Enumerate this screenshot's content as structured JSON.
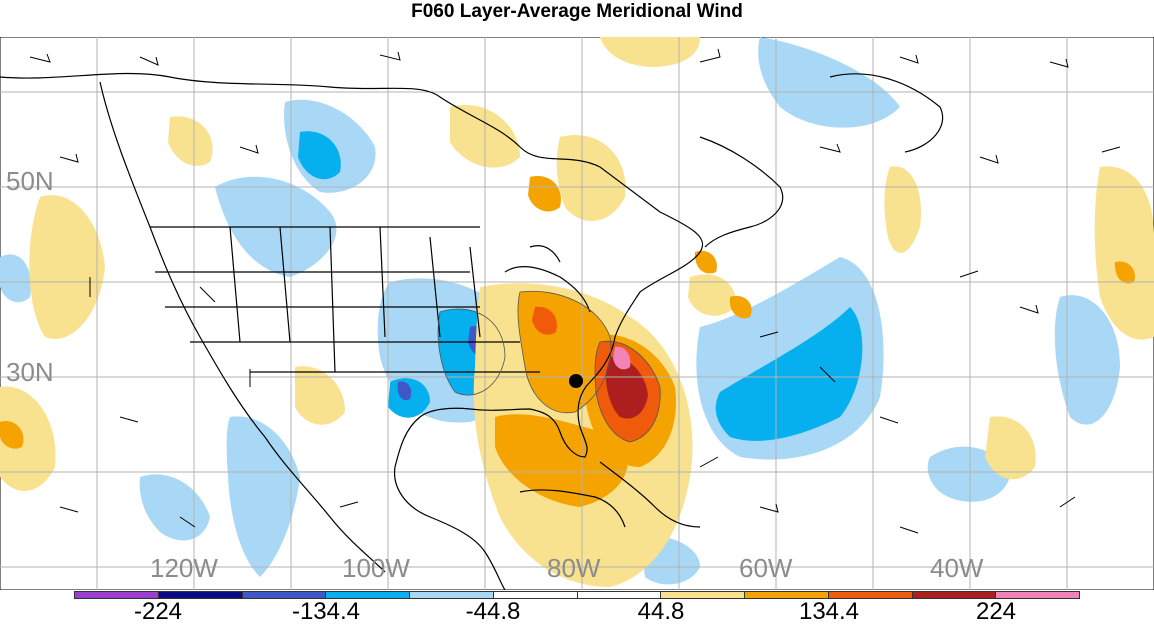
{
  "title": "F060 Layer-Average Meridional Wind",
  "lat_labels": [
    "50N",
    "30N"
  ],
  "lon_labels": [
    "120W",
    "100W",
    "80W",
    "60W",
    "40W"
  ],
  "colorbar": {
    "colors": [
      "#9a3fd0",
      "#0a0a86",
      "#3f58c9",
      "#06b0ee",
      "#a8d8f5",
      "#ffffff",
      "#ffffff",
      "#f9e28f",
      "#f5a300",
      "#f05a0b",
      "#ad1f1f",
      "#f283b7"
    ],
    "labels": [
      "-224",
      "-134.4",
      "-44.8",
      "44.8",
      "134.4",
      "224"
    ]
  },
  "map_features": {
    "storm_marker": "hurricane-center-dot",
    "overlay": "wind-barbs",
    "basemap": "coastlines-and-political-boundaries"
  }
}
